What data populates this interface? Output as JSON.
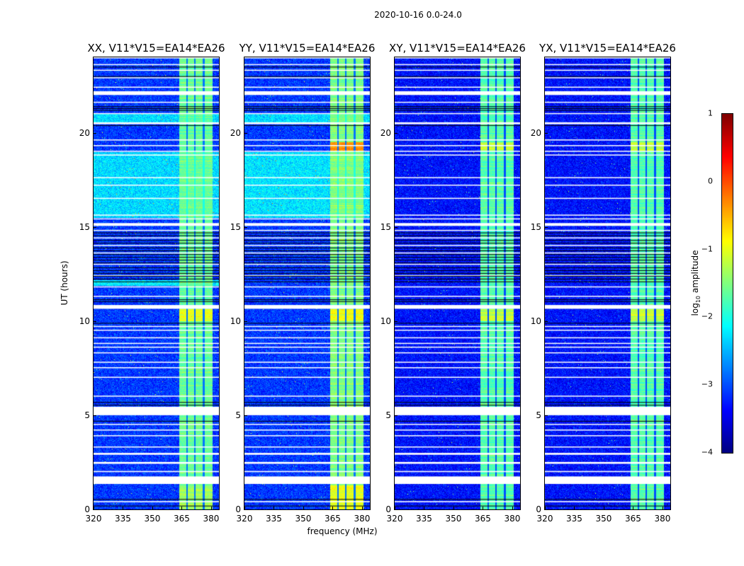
{
  "chart_data": {
    "type": "heatmap",
    "title": "2020-10-16 0.0-24.0",
    "xlabel": "frequency (MHz)",
    "ylabel": "UT (hours)",
    "xlim": [
      320,
      384
    ],
    "ylim": [
      0,
      24
    ],
    "xticks": [
      "320",
      "335",
      "350",
      "365",
      "380"
    ],
    "xtick_values": [
      320,
      335,
      350,
      365,
      380
    ],
    "yticks": [
      "0",
      "5",
      "10",
      "15",
      "20"
    ],
    "ytick_values": [
      0,
      5,
      10,
      15,
      20
    ],
    "colormap": "jet",
    "colorbar": {
      "label_main": "log",
      "label_sub": "10",
      "label_rest": " amplitude",
      "range": [
        -4,
        1
      ],
      "ticks": [
        "−4",
        "−3",
        "−2",
        "−1",
        "0",
        "1"
      ],
      "tick_values": [
        -4,
        -3,
        -2,
        -1,
        0,
        1
      ]
    },
    "bright_band_mhz": [
      363.5,
      380.5
    ],
    "band_notches_mhz": [
      367.5,
      371.5,
      376
    ],
    "flagged_white_hours": [
      [
        0.38,
        0.44
      ],
      [
        1.35,
        1.75
      ],
      [
        1.98,
        2.04
      ],
      [
        2.42,
        2.52
      ],
      [
        2.9,
        3.0
      ],
      [
        3.3,
        3.34
      ],
      [
        3.9,
        3.94
      ],
      [
        4.2,
        4.24
      ],
      [
        4.5,
        4.54
      ],
      [
        5.0,
        5.45
      ],
      [
        6.0,
        6.04
      ],
      [
        7.0,
        7.04
      ],
      [
        7.5,
        7.55
      ],
      [
        7.8,
        7.84
      ],
      [
        8.3,
        8.34
      ],
      [
        8.6,
        8.64
      ],
      [
        8.8,
        8.84
      ],
      [
        9.1,
        9.14
      ],
      [
        9.5,
        9.54
      ],
      [
        9.7,
        9.74
      ],
      [
        10.65,
        10.85
      ],
      [
        11.3,
        11.34
      ],
      [
        11.8,
        11.84
      ],
      [
        12.4,
        12.44
      ],
      [
        13.0,
        13.04
      ],
      [
        13.6,
        13.64
      ],
      [
        14.0,
        14.04
      ],
      [
        14.4,
        14.44
      ],
      [
        14.8,
        14.84
      ],
      [
        15.05,
        15.2
      ],
      [
        15.4,
        15.45
      ],
      [
        15.6,
        15.65
      ],
      [
        16.5,
        16.54
      ],
      [
        17.2,
        17.24
      ],
      [
        17.6,
        17.64
      ],
      [
        18.8,
        18.84
      ],
      [
        19.0,
        19.04
      ],
      [
        19.3,
        19.34
      ],
      [
        19.6,
        19.64
      ],
      [
        20.45,
        20.55
      ],
      [
        21.0,
        21.04
      ],
      [
        21.6,
        21.64
      ],
      [
        22.0,
        22.2
      ],
      [
        22.4,
        22.44
      ],
      [
        22.9,
        22.94
      ],
      [
        23.3,
        23.34
      ],
      [
        23.6,
        23.64
      ],
      [
        23.95,
        24.0
      ]
    ],
    "flagged_black_hours": [
      0.2,
      0.55,
      4.7,
      5.55,
      5.7,
      9.9,
      11.05,
      11.15,
      12.1,
      12.25,
      12.4,
      12.55,
      12.7,
      12.85,
      13.1,
      13.25,
      13.4,
      13.55,
      13.75,
      13.9,
      14.15,
      14.3,
      14.55,
      14.7,
      20.4,
      21.2,
      21.3,
      21.4,
      23.0,
      23.5
    ],
    "panels": [
      {
        "title": "XX, V11*V15=EA14*EA26",
        "background_level": -3.1,
        "band_level": -1.6,
        "elevated": [
          {
            "hours": [
              15.5,
              19.0
            ],
            "level": -2.3
          },
          {
            "hours": [
              20.55,
              21.0
            ],
            "level": -2.3
          },
          {
            "hours": [
              11.9,
              12.2
            ],
            "level": -2.2
          }
        ],
        "band_boosts": [
          {
            "hours": [
              10.0,
              10.65
            ],
            "level": -1.0
          },
          {
            "hours": [
              0.0,
              1.3
            ],
            "level": -1.3
          }
        ]
      },
      {
        "title": "YY, V11*V15=EA14*EA26",
        "background_level": -3.1,
        "band_level": -1.5,
        "elevated": [
          {
            "hours": [
              15.5,
              19.0
            ],
            "level": -2.25
          },
          {
            "hours": [
              20.55,
              21.0
            ],
            "level": -2.3
          }
        ],
        "band_boosts": [
          {
            "hours": [
              19.05,
              19.5
            ],
            "level": -0.4
          },
          {
            "hours": [
              10.0,
              10.65
            ],
            "level": -0.9
          },
          {
            "hours": [
              0.0,
              1.3
            ],
            "level": -1.0
          }
        ]
      },
      {
        "title": "XY, V11*V15=EA14*EA26",
        "background_level": -3.3,
        "band_level": -1.7,
        "elevated": [],
        "band_boosts": [
          {
            "hours": [
              10.0,
              10.65
            ],
            "level": -1.2
          },
          {
            "hours": [
              19.05,
              19.5
            ],
            "level": -1.2
          }
        ]
      },
      {
        "title": "YX, V11*V15=EA14*EA26",
        "background_level": -3.3,
        "band_level": -1.7,
        "elevated": [],
        "band_boosts": [
          {
            "hours": [
              10.0,
              10.65
            ],
            "level": -1.2
          },
          {
            "hours": [
              19.05,
              19.5
            ],
            "level": -1.2
          }
        ]
      }
    ]
  }
}
